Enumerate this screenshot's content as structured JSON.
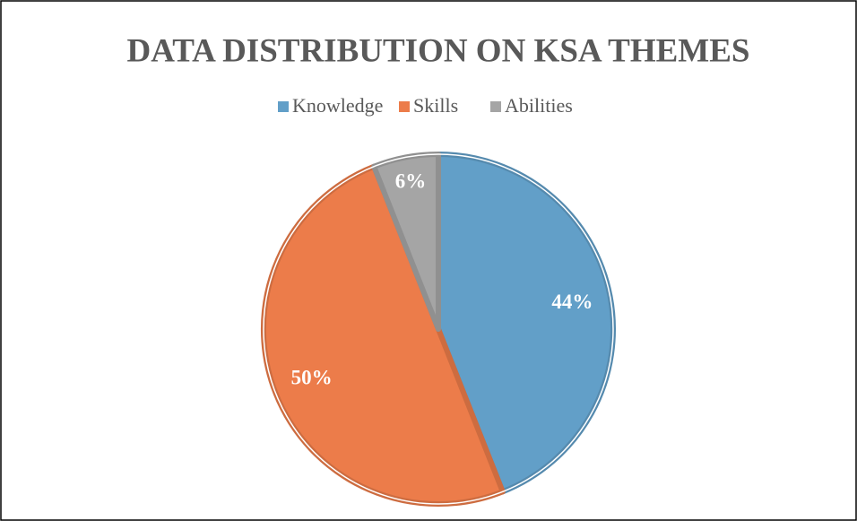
{
  "chart_data": {
    "type": "pie",
    "title": "DATA DISTRIBUTION ON KSA THEMES",
    "categories": [
      "Knowledge",
      "Skills",
      "Abilities"
    ],
    "values": [
      44,
      50,
      6
    ],
    "value_labels": [
      "44%",
      "50%",
      "6%"
    ],
    "colors": [
      "#629fc8",
      "#ec7c4a",
      "#a5a5a5"
    ],
    "legend": "top"
  }
}
